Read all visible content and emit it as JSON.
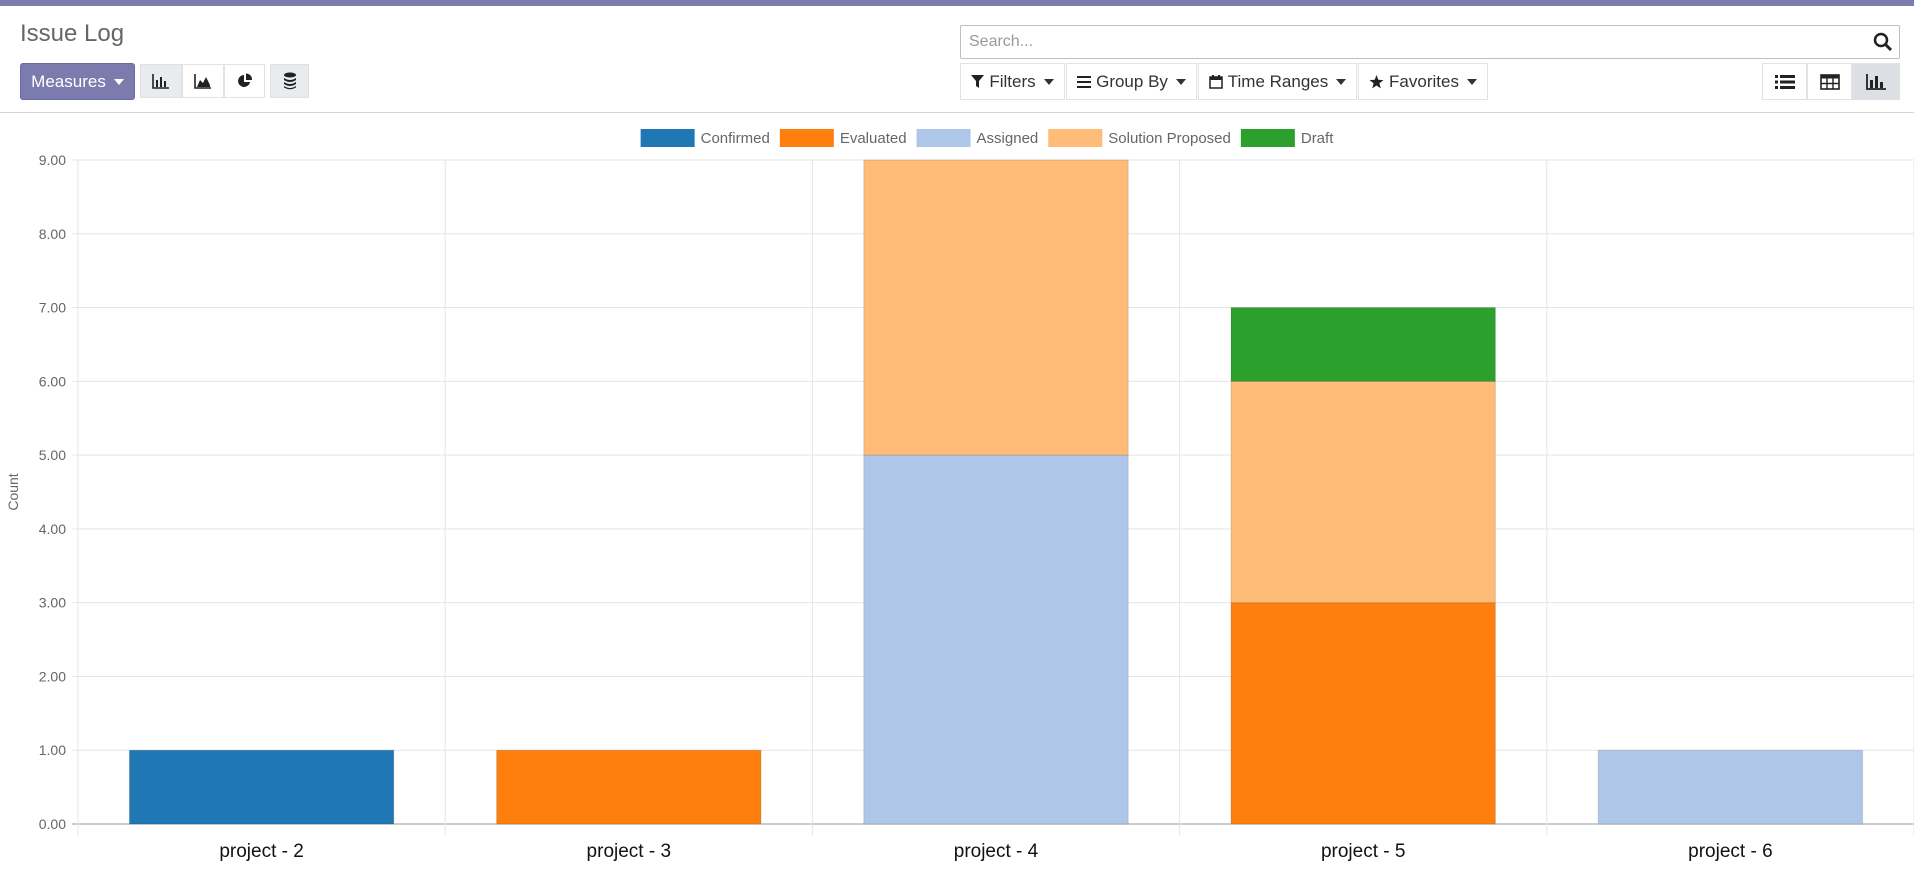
{
  "header": {
    "title": "Issue Log",
    "measures_label": "Measures",
    "search_placeholder": "Search...",
    "filters_label": "Filters",
    "groupby_label": "Group By",
    "timeranges_label": "Time Ranges",
    "favorites_label": "Favorites",
    "chart_type_buttons": [
      "bar-chart-icon",
      "line-chart-icon",
      "pie-chart-icon",
      "stack-icon"
    ],
    "view_buttons": [
      "list-view-icon",
      "pivot-view-icon",
      "graph-view-icon"
    ],
    "active_view": "graph-view-icon"
  },
  "chart_data": {
    "type": "bar",
    "stacked": true,
    "categories": [
      "project - 2",
      "project - 3",
      "project - 4",
      "project - 5",
      "project - 6"
    ],
    "series": [
      {
        "name": "Confirmed",
        "color": "#1f77b4",
        "values": [
          1,
          0,
          0,
          0,
          0
        ]
      },
      {
        "name": "Evaluated",
        "color": "#ff7f0e",
        "values": [
          0,
          1,
          0,
          3,
          0
        ]
      },
      {
        "name": "Assigned",
        "color": "#aec7e8",
        "values": [
          0,
          0,
          5,
          0,
          1
        ]
      },
      {
        "name": "Solution Proposed",
        "color": "#ffbb78",
        "values": [
          0,
          0,
          4,
          3,
          0
        ]
      },
      {
        "name": "Draft",
        "color": "#2ca02c",
        "values": [
          0,
          0,
          0,
          1,
          0
        ]
      }
    ],
    "ylabel": "Count",
    "ylim": [
      0,
      9
    ],
    "yticks": [
      "0.00",
      "1.00",
      "2.00",
      "3.00",
      "4.00",
      "5.00",
      "6.00",
      "7.00",
      "8.00",
      "9.00"
    ],
    "legend_position": "top-center",
    "grid": true
  }
}
